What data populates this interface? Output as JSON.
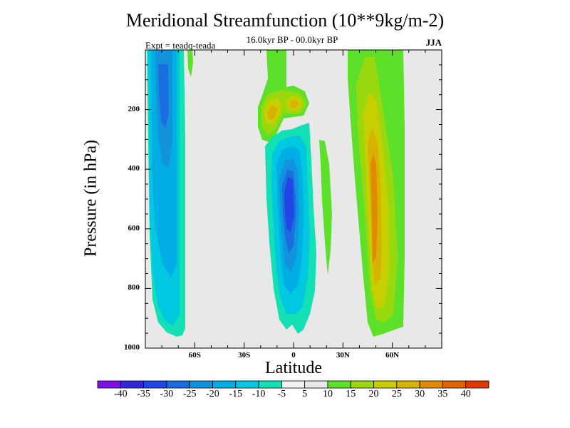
{
  "chart_data": {
    "type": "heatmap",
    "title": "Meridional Streamfunction (10**9kg/m-2)",
    "subtitle": "16.0kyr BP - 00.0kyr BP",
    "experiment": "Expt = teadq-teada",
    "season": "JJA",
    "xlabel": "Latitude",
    "ylabel": "Pressure (in hPa)",
    "xlim": [
      -90,
      90
    ],
    "ylim": [
      1000,
      0
    ],
    "y_ticks": [
      {
        "value": 200,
        "label": "200"
      },
      {
        "value": 400,
        "label": "400"
      },
      {
        "value": 600,
        "label": "600"
      },
      {
        "value": 800,
        "label": "800"
      },
      {
        "value": 1000,
        "label": "1000"
      }
    ],
    "x_ticks": [
      {
        "value": -60,
        "label": "60S"
      },
      {
        "value": -30,
        "label": "30S"
      },
      {
        "value": 0,
        "label": "0"
      },
      {
        "value": 30,
        "label": "30N"
      },
      {
        "value": 60,
        "label": "60N"
      }
    ],
    "levels": [
      -40,
      -35,
      -30,
      -25,
      -20,
      -15,
      -10,
      -5,
      5,
      10,
      15,
      20,
      25,
      30,
      35,
      40
    ],
    "level_labels": [
      "-40",
      "-35",
      "-30",
      "-25",
      "-20",
      "-15",
      "-10",
      "-5",
      "5",
      "10",
      "15",
      "20",
      "25",
      "30",
      "35",
      "40"
    ],
    "colors": [
      "#7d10e6",
      "#3228d8",
      "#2046e6",
      "#1a6ee0",
      "#1293dc",
      "#00aee6",
      "#00c8e0",
      "#13e0b4",
      "#e8e8e8",
      "#5de029",
      "#9ad80e",
      "#c8cf00",
      "#d8b200",
      "#e08a00",
      "#e06400",
      "#e03a00"
    ],
    "regions": [
      {
        "name": "sh-polar-cell",
        "value_range": [
          -25,
          -20
        ],
        "lon": [
          -90,
          -86,
          -85,
          -82,
          -76,
          -73,
          -68,
          -68,
          -70,
          -70,
          -72,
          -74,
          -80,
          -86,
          -90
        ],
        "p": [
          0,
          0,
          330,
          680,
          870,
          915,
          950,
          800,
          600,
          400,
          250,
          0,
          0,
          0,
          0
        ],
        "core_lon": [
          -84,
          -80,
          -75,
          -73,
          -73,
          -74,
          -78,
          -82
        ],
        "core_p": [
          0,
          0,
          0,
          100,
          300,
          450,
          420,
          200
        ]
      },
      {
        "name": "tropical-cell",
        "value_range": [
          -35,
          -15
        ],
        "lon": [
          -12,
          -8,
          -2,
          5,
          10,
          11,
          12,
          9,
          7,
          3,
          0,
          -4,
          -6,
          -8,
          -10,
          -12
        ],
        "p": [
          500,
          300,
          210,
          200,
          430,
          560,
          700,
          820,
          955,
          920,
          900,
          950,
          950,
          780,
          600,
          500
        ],
        "core_lon": [
          -6,
          -2,
          2,
          3,
          2,
          -2,
          -4,
          -4
        ],
        "core_p": [
          480,
          330,
          360,
          520,
          730,
          850,
          650,
          480
        ]
      },
      {
        "name": "upper-tropics-positive",
        "value_range": [
          5,
          15
        ],
        "lon": [
          -18,
          -18,
          -14,
          -12,
          -12,
          -10,
          -5,
          5,
          6,
          6,
          -5,
          -16,
          -18
        ],
        "p": [
          0,
          150,
          230,
          300,
          330,
          350,
          290,
          250,
          0,
          0,
          0,
          0,
          0
        ],
        "core_lon": [
          -16,
          -12,
          -8,
          -3,
          3,
          4,
          -3,
          -12
        ],
        "core_p": [
          130,
          110,
          140,
          120,
          120,
          200,
          230,
          200
        ]
      },
      {
        "name": "nh-positive-cell",
        "value_range": [
          5,
          30
        ],
        "lon": [
          35,
          35,
          38,
          40,
          42,
          44,
          46,
          48,
          55,
          60,
          65,
          68,
          68,
          35
        ],
        "p": [
          0,
          150,
          350,
          600,
          800,
          950,
          960,
          940,
          950,
          950,
          950,
          950,
          0,
          0
        ],
        "core_lon": [
          44,
          50,
          52,
          50,
          48,
          46,
          45,
          44
        ],
        "core_p": [
          200,
          350,
          600,
          800,
          870,
          820,
          600,
          300
        ]
      }
    ]
  }
}
